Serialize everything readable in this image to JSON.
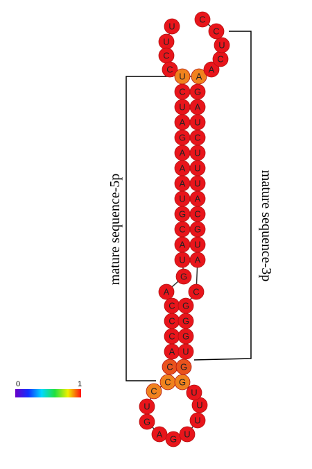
{
  "nodes": [
    {
      "label": "U",
      "color": "#e8151b"
    },
    {
      "label": "U",
      "color": "#e8151b"
    },
    {
      "label": "C",
      "color": "#e8151b"
    },
    {
      "label": "C",
      "color": "#e8151b"
    },
    {
      "label": "U",
      "color": "#f0821e"
    },
    {
      "label": "C",
      "color": "#e8151b"
    },
    {
      "label": "U",
      "color": "#e8151b"
    },
    {
      "label": "A",
      "color": "#e8151b"
    },
    {
      "label": "G",
      "color": "#e8151b"
    },
    {
      "label": "A",
      "color": "#e8151b"
    },
    {
      "label": "A",
      "color": "#e8151b"
    },
    {
      "label": "A",
      "color": "#e8151b"
    },
    {
      "label": "U",
      "color": "#e8151b"
    },
    {
      "label": "G",
      "color": "#e8151b"
    },
    {
      "label": "C",
      "color": "#e8151b"
    },
    {
      "label": "A",
      "color": "#e8151b"
    },
    {
      "label": "U",
      "color": "#e8151b"
    },
    {
      "label": "G",
      "color": "#e8151b"
    },
    {
      "label": "A",
      "color": "#e8151b"
    },
    {
      "label": "C",
      "color": "#e8151b"
    },
    {
      "label": "C",
      "color": "#e8151b"
    },
    {
      "label": "C",
      "color": "#e8151b"
    },
    {
      "label": "A",
      "color": "#e8151b"
    },
    {
      "label": "C",
      "color": "#e9521d"
    },
    {
      "label": "C",
      "color": "#f0821e"
    },
    {
      "label": "C",
      "color": "#f0821e"
    },
    {
      "label": "U",
      "color": "#e8151b"
    },
    {
      "label": "G",
      "color": "#e8151b"
    },
    {
      "label": "A",
      "color": "#e8151b"
    },
    {
      "label": "G",
      "color": "#e8151b"
    },
    {
      "label": "U",
      "color": "#e8151b"
    },
    {
      "label": "U",
      "color": "#e8151b"
    },
    {
      "label": "U",
      "color": "#e8151b"
    },
    {
      "label": "U",
      "color": "#e8151b"
    },
    {
      "label": "G",
      "color": "#f0821e"
    },
    {
      "label": "G",
      "color": "#e9521d"
    },
    {
      "label": "U",
      "color": "#e8151b"
    },
    {
      "label": "G",
      "color": "#e8151b"
    },
    {
      "label": "G",
      "color": "#e8151b"
    },
    {
      "label": "G",
      "color": "#e8151b"
    },
    {
      "label": "C",
      "color": "#e8151b"
    },
    {
      "label": "A",
      "color": "#e8151b"
    },
    {
      "label": "U",
      "color": "#e8151b"
    },
    {
      "label": "G",
      "color": "#e8151b"
    },
    {
      "label": "C",
      "color": "#e8151b"
    },
    {
      "label": "A",
      "color": "#e8151b"
    },
    {
      "label": "U",
      "color": "#e8151b"
    },
    {
      "label": "U",
      "color": "#e8151b"
    },
    {
      "label": "U",
      "color": "#e8151b"
    },
    {
      "label": "C",
      "color": "#e8151b"
    },
    {
      "label": "U",
      "color": "#e8151b"
    },
    {
      "label": "A",
      "color": "#e8151b"
    },
    {
      "label": "G",
      "color": "#e8151b"
    },
    {
      "label": "A",
      "color": "#f0821e"
    },
    {
      "label": "A",
      "color": "#e8151b"
    },
    {
      "label": "C",
      "color": "#e8151b"
    },
    {
      "label": "U",
      "color": "#e8151b"
    },
    {
      "label": "C",
      "color": "#e8151b"
    },
    {
      "label": "C",
      "color": "#e8151b"
    }
  ],
  "annotations": {
    "left": "mature sequence-5p",
    "right": "mature sequence-3p"
  },
  "scale": {
    "min": "0",
    "max": "1"
  }
}
